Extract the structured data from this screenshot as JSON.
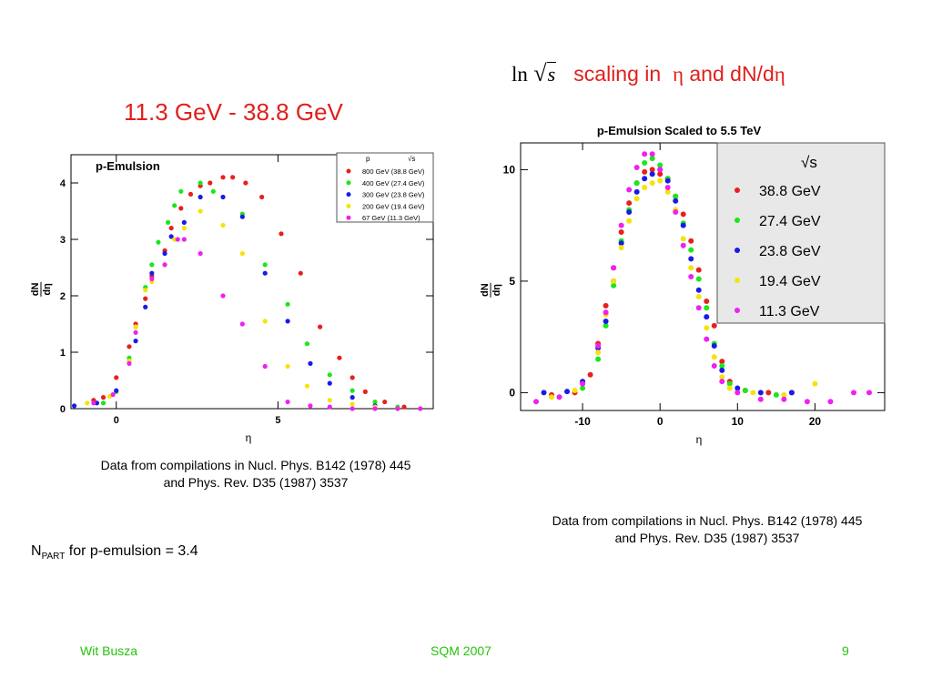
{
  "slide": {
    "left_title": "11.3 GeV - 38.8 GeV",
    "right_title": {
      "ln": "ln",
      "sqrt_symbol": "√",
      "s": "s",
      "text1": "scaling in",
      "eta": "η",
      "text2": "and dN/d",
      "eta2": "η"
    },
    "left_caption": {
      "line1": "Data from compilations in Nucl. Phys. B142 (1978) 445",
      "line2": "and Phys. Rev. D35 (1987) 3537"
    },
    "right_caption": {
      "line1": "Data from compilations in Nucl. Phys. B142 (1978) 445",
      "line2": "and Phys. Rev. D35 (1987) 3537"
    },
    "npart": {
      "prefix": "N",
      "sub": "PART",
      "text": "for p-emulsion = 3.4"
    },
    "footer": {
      "author": "Wit Busza",
      "conference": "SQM 2007",
      "page": "9"
    }
  },
  "chart_data": [
    {
      "type": "scatter",
      "title": "p-Emulsion",
      "xlabel": "η",
      "ylabel_num": "dN",
      "ylabel_den": "dη",
      "xlim": [
        -1.4,
        9.8
      ],
      "ylim": [
        0,
        4.5
      ],
      "xticks": [
        0,
        5
      ],
      "xtick_labels": [
        "0",
        "5"
      ],
      "yticks": [
        0,
        1,
        2,
        3,
        4
      ],
      "ytick_labels": [
        "0",
        "1",
        "2",
        "3",
        "4"
      ],
      "legend": {
        "placement": "top-right",
        "header_p": "p",
        "header_sqrt": "√s",
        "entries": [
          "800 GeV (38.8 GeV)",
          "400 GeV (27.4 GeV)",
          "300 GeV (23.8 GeV)",
          "200 GeV (19.4 GeV)",
          "67 GeV (11.3 GeV)"
        ]
      },
      "series": [
        {
          "color": "#e8201c",
          "points": [
            [
              -0.7,
              0.15
            ],
            [
              -0.4,
              0.2
            ],
            [
              0.0,
              0.55
            ],
            [
              0.4,
              1.1
            ],
            [
              0.6,
              1.5
            ],
            [
              0.9,
              1.95
            ],
            [
              1.1,
              2.35
            ],
            [
              1.5,
              2.8
            ],
            [
              1.7,
              3.2
            ],
            [
              2.0,
              3.55
            ],
            [
              2.3,
              3.8
            ],
            [
              2.6,
              3.95
            ],
            [
              2.9,
              4.0
            ],
            [
              3.3,
              4.1
            ],
            [
              3.6,
              4.1
            ],
            [
              4.0,
              4.0
            ],
            [
              4.5,
              3.75
            ],
            [
              5.1,
              3.1
            ],
            [
              5.7,
              2.4
            ],
            [
              6.3,
              1.45
            ],
            [
              6.9,
              0.9
            ],
            [
              7.3,
              0.55
            ],
            [
              7.7,
              0.3
            ],
            [
              8.3,
              0.12
            ],
            [
              8.9,
              0.03
            ]
          ]
        },
        {
          "color": "#19e81a",
          "points": [
            [
              -0.4,
              0.1
            ],
            [
              0.0,
              0.3
            ],
            [
              0.4,
              0.9
            ],
            [
              0.6,
              1.45
            ],
            [
              0.9,
              2.15
            ],
            [
              1.1,
              2.55
            ],
            [
              1.3,
              2.95
            ],
            [
              1.6,
              3.3
            ],
            [
              1.8,
              3.6
            ],
            [
              2.0,
              3.85
            ],
            [
              2.6,
              4.0
            ],
            [
              3.0,
              3.85
            ],
            [
              3.9,
              3.45
            ],
            [
              4.6,
              2.55
            ],
            [
              5.3,
              1.85
            ],
            [
              5.9,
              1.15
            ],
            [
              6.6,
              0.6
            ],
            [
              7.3,
              0.32
            ],
            [
              8.0,
              0.12
            ],
            [
              8.7,
              0.03
            ]
          ]
        },
        {
          "color": "#1a1ae8",
          "points": [
            [
              -1.3,
              0.05
            ],
            [
              -0.6,
              0.1
            ],
            [
              0.0,
              0.32
            ],
            [
              0.4,
              0.85
            ],
            [
              0.6,
              1.2
            ],
            [
              0.9,
              1.8
            ],
            [
              1.1,
              2.4
            ],
            [
              1.5,
              2.75
            ],
            [
              1.7,
              3.05
            ],
            [
              2.1,
              3.3
            ],
            [
              2.6,
              3.75
            ],
            [
              3.3,
              3.75
            ],
            [
              3.9,
              3.4
            ],
            [
              4.6,
              2.4
            ],
            [
              5.3,
              1.55
            ],
            [
              6.0,
              0.8
            ],
            [
              6.6,
              0.45
            ],
            [
              7.3,
              0.2
            ],
            [
              8.0,
              0.05
            ]
          ]
        },
        {
          "color": "#f5e30a",
          "points": [
            [
              -0.9,
              0.1
            ],
            [
              -0.2,
              0.22
            ],
            [
              0.4,
              0.85
            ],
            [
              0.6,
              1.45
            ],
            [
              0.9,
              2.1
            ],
            [
              1.1,
              2.25
            ],
            [
              1.5,
              2.55
            ],
            [
              1.8,
              3.0
            ],
            [
              2.1,
              3.2
            ],
            [
              2.6,
              3.5
            ],
            [
              3.3,
              3.25
            ],
            [
              3.9,
              2.75
            ],
            [
              4.6,
              1.55
            ],
            [
              5.3,
              0.75
            ],
            [
              5.9,
              0.4
            ],
            [
              6.6,
              0.15
            ],
            [
              7.3,
              0.08
            ],
            [
              8.0,
              0.03
            ],
            [
              8.7,
              0.0
            ]
          ]
        },
        {
          "color": "#f020f0",
          "points": [
            [
              -0.7,
              0.1
            ],
            [
              -0.1,
              0.25
            ],
            [
              0.4,
              0.8
            ],
            [
              0.6,
              1.35
            ],
            [
              1.1,
              2.3
            ],
            [
              1.5,
              2.55
            ],
            [
              1.9,
              3.0
            ],
            [
              2.1,
              3.0
            ],
            [
              2.6,
              2.75
            ],
            [
              3.3,
              2.0
            ],
            [
              3.9,
              1.5
            ],
            [
              4.6,
              0.75
            ],
            [
              5.3,
              0.12
            ],
            [
              6.0,
              0.05
            ],
            [
              6.6,
              0.03
            ],
            [
              7.3,
              0.0
            ],
            [
              8.0,
              0.0
            ],
            [
              8.7,
              0.0
            ],
            [
              9.4,
              0.0
            ]
          ]
        }
      ]
    },
    {
      "type": "scatter",
      "title": "p-Emulsion Scaled to 5.5 TeV",
      "xlabel": "η",
      "ylabel_num": "dN",
      "ylabel_den": "dη",
      "xlim": [
        -18,
        29
      ],
      "ylim": [
        -0.8,
        11.2
      ],
      "xticks": [
        -10,
        0,
        10,
        20
      ],
      "xtick_labels": [
        "-10",
        "0",
        "10",
        "20"
      ],
      "yticks": [
        0,
        5,
        10
      ],
      "ytick_labels": [
        "0",
        "5",
        "10"
      ],
      "legend": {
        "placement": "top-right",
        "header_sqrt": "√s",
        "entries": [
          "38.8 GeV",
          "27.4 GeV",
          "23.8 GeV",
          "19.4 GeV",
          "11.3 GeV"
        ]
      },
      "series": [
        {
          "color": "#e8201c",
          "points": [
            [
              -14,
              -0.1
            ],
            [
              -11,
              0.0
            ],
            [
              -9,
              0.8
            ],
            [
              -8,
              2.2
            ],
            [
              -7,
              3.9
            ],
            [
              -6,
              5.6
            ],
            [
              -5,
              7.2
            ],
            [
              -4,
              8.5
            ],
            [
              -3,
              9.4
            ],
            [
              -2,
              9.9
            ],
            [
              -1,
              10.0
            ],
            [
              0,
              9.8
            ],
            [
              1,
              9.6
            ],
            [
              2,
              8.8
            ],
            [
              3,
              8.0
            ],
            [
              4,
              6.8
            ],
            [
              5,
              5.5
            ],
            [
              6,
              4.1
            ],
            [
              7,
              3.0
            ],
            [
              8,
              1.4
            ],
            [
              9,
              0.5
            ],
            [
              11,
              0.1
            ],
            [
              14,
              0.0
            ],
            [
              17,
              0.0
            ]
          ]
        },
        {
          "color": "#19e81a",
          "points": [
            [
              -13,
              -0.2
            ],
            [
              -10,
              0.2
            ],
            [
              -8,
              1.5
            ],
            [
              -7,
              3.0
            ],
            [
              -6,
              4.8
            ],
            [
              -5,
              6.8
            ],
            [
              -4,
              8.2
            ],
            [
              -3,
              9.4
            ],
            [
              -2,
              10.3
            ],
            [
              -1,
              10.5
            ],
            [
              0,
              10.2
            ],
            [
              1,
              9.6
            ],
            [
              2,
              8.8
            ],
            [
              3,
              7.6
            ],
            [
              4,
              6.4
            ],
            [
              5,
              5.1
            ],
            [
              6,
              3.8
            ],
            [
              7,
              2.2
            ],
            [
              8,
              1.2
            ],
            [
              9,
              0.4
            ],
            [
              11,
              0.1
            ],
            [
              15,
              -0.1
            ]
          ]
        },
        {
          "color": "#1a1ae8",
          "points": [
            [
              -15,
              0.0
            ],
            [
              -12,
              0.05
            ],
            [
              -10,
              0.5
            ],
            [
              -8,
              2.0
            ],
            [
              -7,
              3.2
            ],
            [
              -6,
              5.0
            ],
            [
              -5,
              6.7
            ],
            [
              -4,
              8.1
            ],
            [
              -3,
              9.0
            ],
            [
              -2,
              9.6
            ],
            [
              -1,
              9.8
            ],
            [
              0,
              10.0
            ],
            [
              1,
              9.5
            ],
            [
              2,
              8.6
            ],
            [
              3,
              7.5
            ],
            [
              4,
              6.0
            ],
            [
              5,
              4.6
            ],
            [
              6,
              3.4
            ],
            [
              7,
              2.1
            ],
            [
              8,
              1.0
            ],
            [
              10,
              0.2
            ],
            [
              13,
              0.0
            ],
            [
              17,
              0.0
            ]
          ]
        },
        {
          "color": "#f5e30a",
          "points": [
            [
              -14,
              -0.2
            ],
            [
              -11,
              0.1
            ],
            [
              -8,
              1.8
            ],
            [
              -7,
              3.5
            ],
            [
              -6,
              5.0
            ],
            [
              -5,
              6.5
            ],
            [
              -4,
              7.7
            ],
            [
              -3,
              8.7
            ],
            [
              -2,
              9.2
            ],
            [
              -1,
              9.4
            ],
            [
              0,
              9.5
            ],
            [
              1,
              9.0
            ],
            [
              2,
              8.2
            ],
            [
              3,
              6.9
            ],
            [
              4,
              5.6
            ],
            [
              5,
              4.3
            ],
            [
              6,
              2.9
            ],
            [
              7,
              1.6
            ],
            [
              8,
              0.7
            ],
            [
              9,
              0.2
            ],
            [
              12,
              0.0
            ],
            [
              16,
              -0.1
            ],
            [
              20,
              0.4
            ]
          ]
        },
        {
          "color": "#f020f0",
          "points": [
            [
              -16,
              -0.4
            ],
            [
              -13,
              -0.2
            ],
            [
              -10,
              0.4
            ],
            [
              -8,
              2.1
            ],
            [
              -7,
              3.6
            ],
            [
              -6,
              5.6
            ],
            [
              -5,
              7.5
            ],
            [
              -4,
              9.1
            ],
            [
              -3,
              10.1
            ],
            [
              -2,
              10.7
            ],
            [
              -1,
              10.7
            ],
            [
              0,
              10.0
            ],
            [
              1,
              9.2
            ],
            [
              2,
              8.1
            ],
            [
              3,
              6.6
            ],
            [
              4,
              5.2
            ],
            [
              5,
              3.8
            ],
            [
              6,
              2.4
            ],
            [
              7,
              1.2
            ],
            [
              8,
              0.5
            ],
            [
              10,
              0.0
            ],
            [
              13,
              -0.3
            ],
            [
              16,
              -0.3
            ],
            [
              19,
              -0.4
            ],
            [
              22,
              -0.4
            ],
            [
              25,
              0.0
            ],
            [
              27,
              0.0
            ]
          ]
        }
      ]
    }
  ]
}
